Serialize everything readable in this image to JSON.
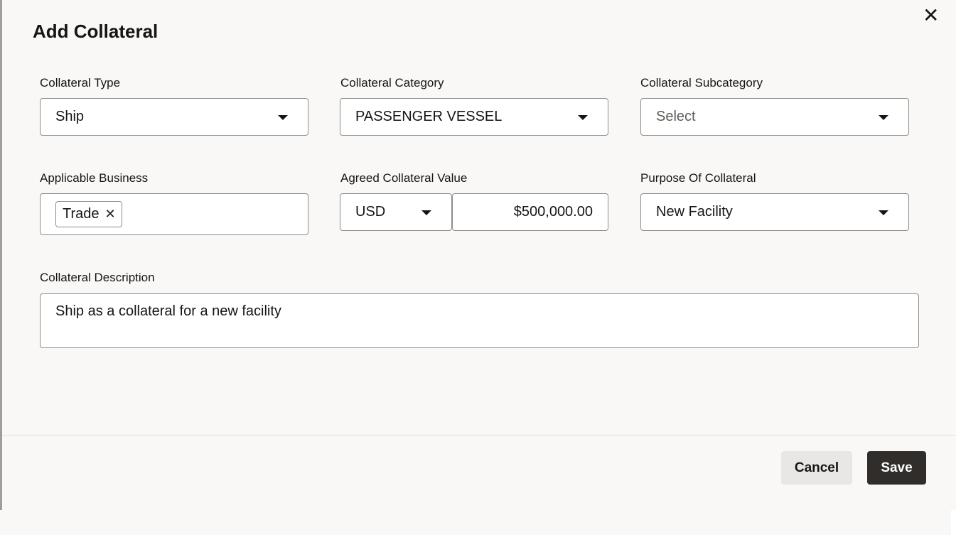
{
  "dialog": {
    "title": "Add Collateral",
    "close_icon": "close-icon"
  },
  "fields": {
    "collateral_type": {
      "label": "Collateral Type",
      "value": "Ship"
    },
    "collateral_category": {
      "label": "Collateral Category",
      "value": "PASSENGER VESSEL"
    },
    "collateral_subcategory": {
      "label": "Collateral Subcategory",
      "placeholder": "Select"
    },
    "applicable_business": {
      "label": "Applicable Business",
      "chips": [
        "Trade"
      ]
    },
    "agreed_value": {
      "label": "Agreed Collateral Value",
      "currency": "USD",
      "amount": "$500,000.00"
    },
    "purpose": {
      "label": "Purpose Of Collateral",
      "value": "New Facility"
    },
    "description": {
      "label": "Collateral Description",
      "value": "Ship as a collateral for a new facility"
    }
  },
  "footer": {
    "cancel_label": "Cancel",
    "save_label": "Save"
  },
  "colors": {
    "primary_button": "#312d2a",
    "secondary_button": "#e8e7e5",
    "background": "#f9f8f6"
  }
}
